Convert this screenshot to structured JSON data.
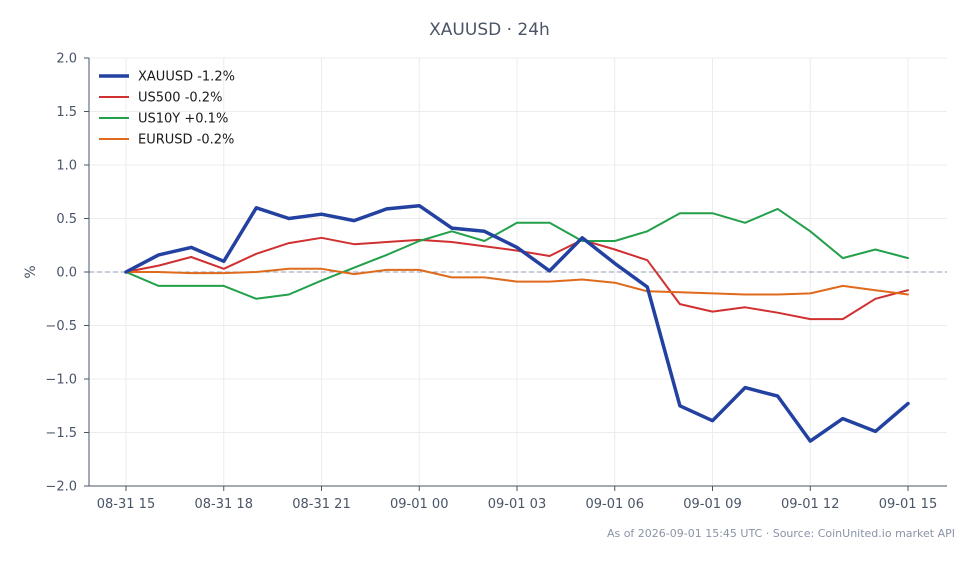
{
  "chart_data": {
    "type": "line",
    "title": "XAUUSD · 24h",
    "ylabel": "%",
    "xlabel": "",
    "ylim": [
      -2.0,
      2.0
    ],
    "yticks": [
      "2.0",
      "1.5",
      "1.0",
      "0.5",
      "0.0",
      "−0.5",
      "−1.0",
      "−1.5",
      "−2.0"
    ],
    "ytick_values": [
      2.0,
      1.5,
      1.0,
      0.5,
      0.0,
      -0.5,
      -1.0,
      -1.5,
      -2.0
    ],
    "x": [
      "08-31 15",
      "08-31 16",
      "08-31 17",
      "08-31 18",
      "08-31 19",
      "08-31 20",
      "08-31 21",
      "08-31 22",
      "08-31 23",
      "09-01 00",
      "09-01 01",
      "09-01 02",
      "09-01 03",
      "09-01 04",
      "09-01 05",
      "09-01 06",
      "09-01 07",
      "09-01 08",
      "09-01 09",
      "09-01 10",
      "09-01 11",
      "09-01 12",
      "09-01 13",
      "09-01 14",
      "09-01 15"
    ],
    "xticks": [
      "08-31 15",
      "08-31 18",
      "08-31 21",
      "09-01 00",
      "09-01 03",
      "09-01 06",
      "09-01 09",
      "09-01 12",
      "09-01 15"
    ],
    "grid": true,
    "zero_line": true,
    "legend_position": "top-left",
    "series": [
      {
        "name": "XAUUSD -1.2%",
        "color": "#2341a0",
        "values": [
          0.0,
          0.16,
          0.23,
          0.1,
          0.6,
          0.5,
          0.54,
          0.48,
          0.59,
          0.62,
          0.41,
          0.38,
          0.23,
          0.01,
          0.32,
          0.08,
          -0.14,
          -1.25,
          -1.39,
          -1.08,
          -1.16,
          -1.58,
          -1.37,
          -1.49,
          -1.23
        ]
      },
      {
        "name": "US500 -0.2%",
        "color": "#d03030",
        "values": [
          0.0,
          0.06,
          0.14,
          0.03,
          0.17,
          0.27,
          0.32,
          0.26,
          0.28,
          0.3,
          0.28,
          0.24,
          0.2,
          0.15,
          0.3,
          0.21,
          0.11,
          -0.3,
          -0.37,
          -0.33,
          -0.38,
          -0.44,
          -0.44,
          -0.25,
          -0.17
        ]
      },
      {
        "name": "US10Y +0.1%",
        "color": "#22a04a",
        "values": [
          0.0,
          -0.13,
          -0.13,
          -0.13,
          -0.25,
          -0.21,
          -0.08,
          0.04,
          0.16,
          0.29,
          0.38,
          0.29,
          0.46,
          0.46,
          0.29,
          0.29,
          0.38,
          0.55,
          0.55,
          0.46,
          0.59,
          0.38,
          0.13,
          0.21,
          0.13
        ]
      },
      {
        "name": "EURUSD -0.2%",
        "color": "#e06a1c",
        "values": [
          0.0,
          0.0,
          -0.01,
          -0.01,
          0.0,
          0.03,
          0.03,
          -0.02,
          0.02,
          0.02,
          -0.05,
          -0.05,
          -0.09,
          -0.09,
          -0.07,
          -0.1,
          -0.18,
          -0.19,
          -0.2,
          -0.21,
          -0.21,
          -0.2,
          -0.13,
          -0.17,
          -0.21
        ]
      }
    ]
  },
  "footer": "As of 2026-09-01 15:45 UTC · Source: CoinUnited.io market API"
}
